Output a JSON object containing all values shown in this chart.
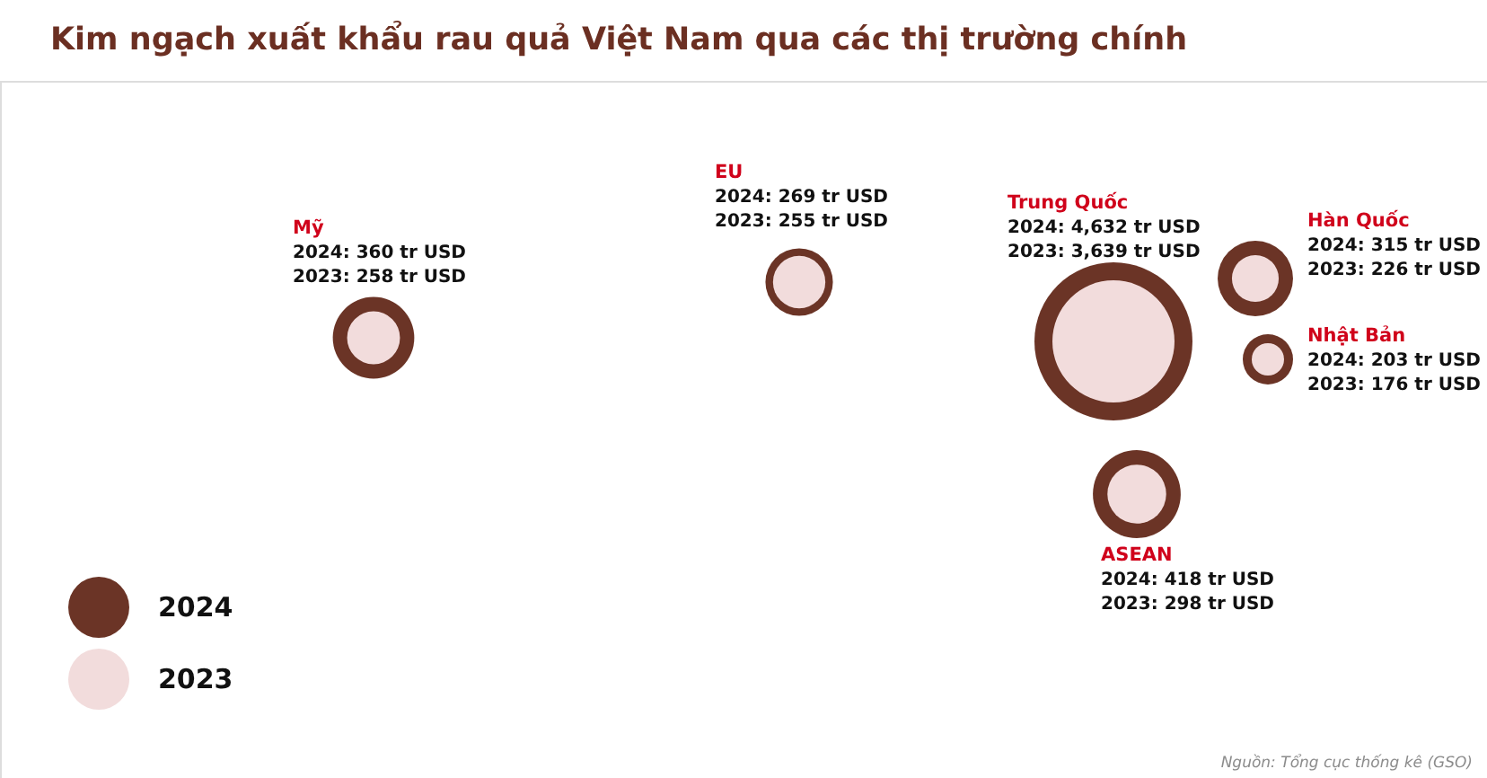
{
  "chart_data": {
    "type": "other",
    "title": "Kim ngạch xuất khẩu rau quả Việt Nam qua các thị trường chính",
    "categories": [
      "Mỹ",
      "EU",
      "Trung Quốc",
      "Hàn Quốc",
      "Nhật Bản",
      "ASEAN"
    ],
    "series": [
      {
        "name": "2024",
        "color": "#6b3426",
        "values": [
          360,
          269,
          4632,
          315,
          203,
          418
        ],
        "value_labels": [
          "2024: 360 tr USD",
          "2024: 269 tr USD",
          "2024: 4,632 tr USD",
          "2024: 315 tr USD",
          "2024: 203 tr USD",
          "2024: 418 tr USD"
        ]
      },
      {
        "name": "2023",
        "color": "#f2dcdc",
        "values": [
          258,
          255,
          3639,
          226,
          176,
          298
        ],
        "value_labels": [
          "2023: 258 tr USD",
          "2023: 255 tr USD",
          "2023: 3,639 tr USD",
          "2023: 226 tr USD",
          "2023: 176 tr USD",
          "2023: 298 tr USD"
        ]
      }
    ],
    "legend": "bottom left",
    "annotations": [
      "Nguồn: Tổng cục thống kê (GSO)"
    ]
  }
}
